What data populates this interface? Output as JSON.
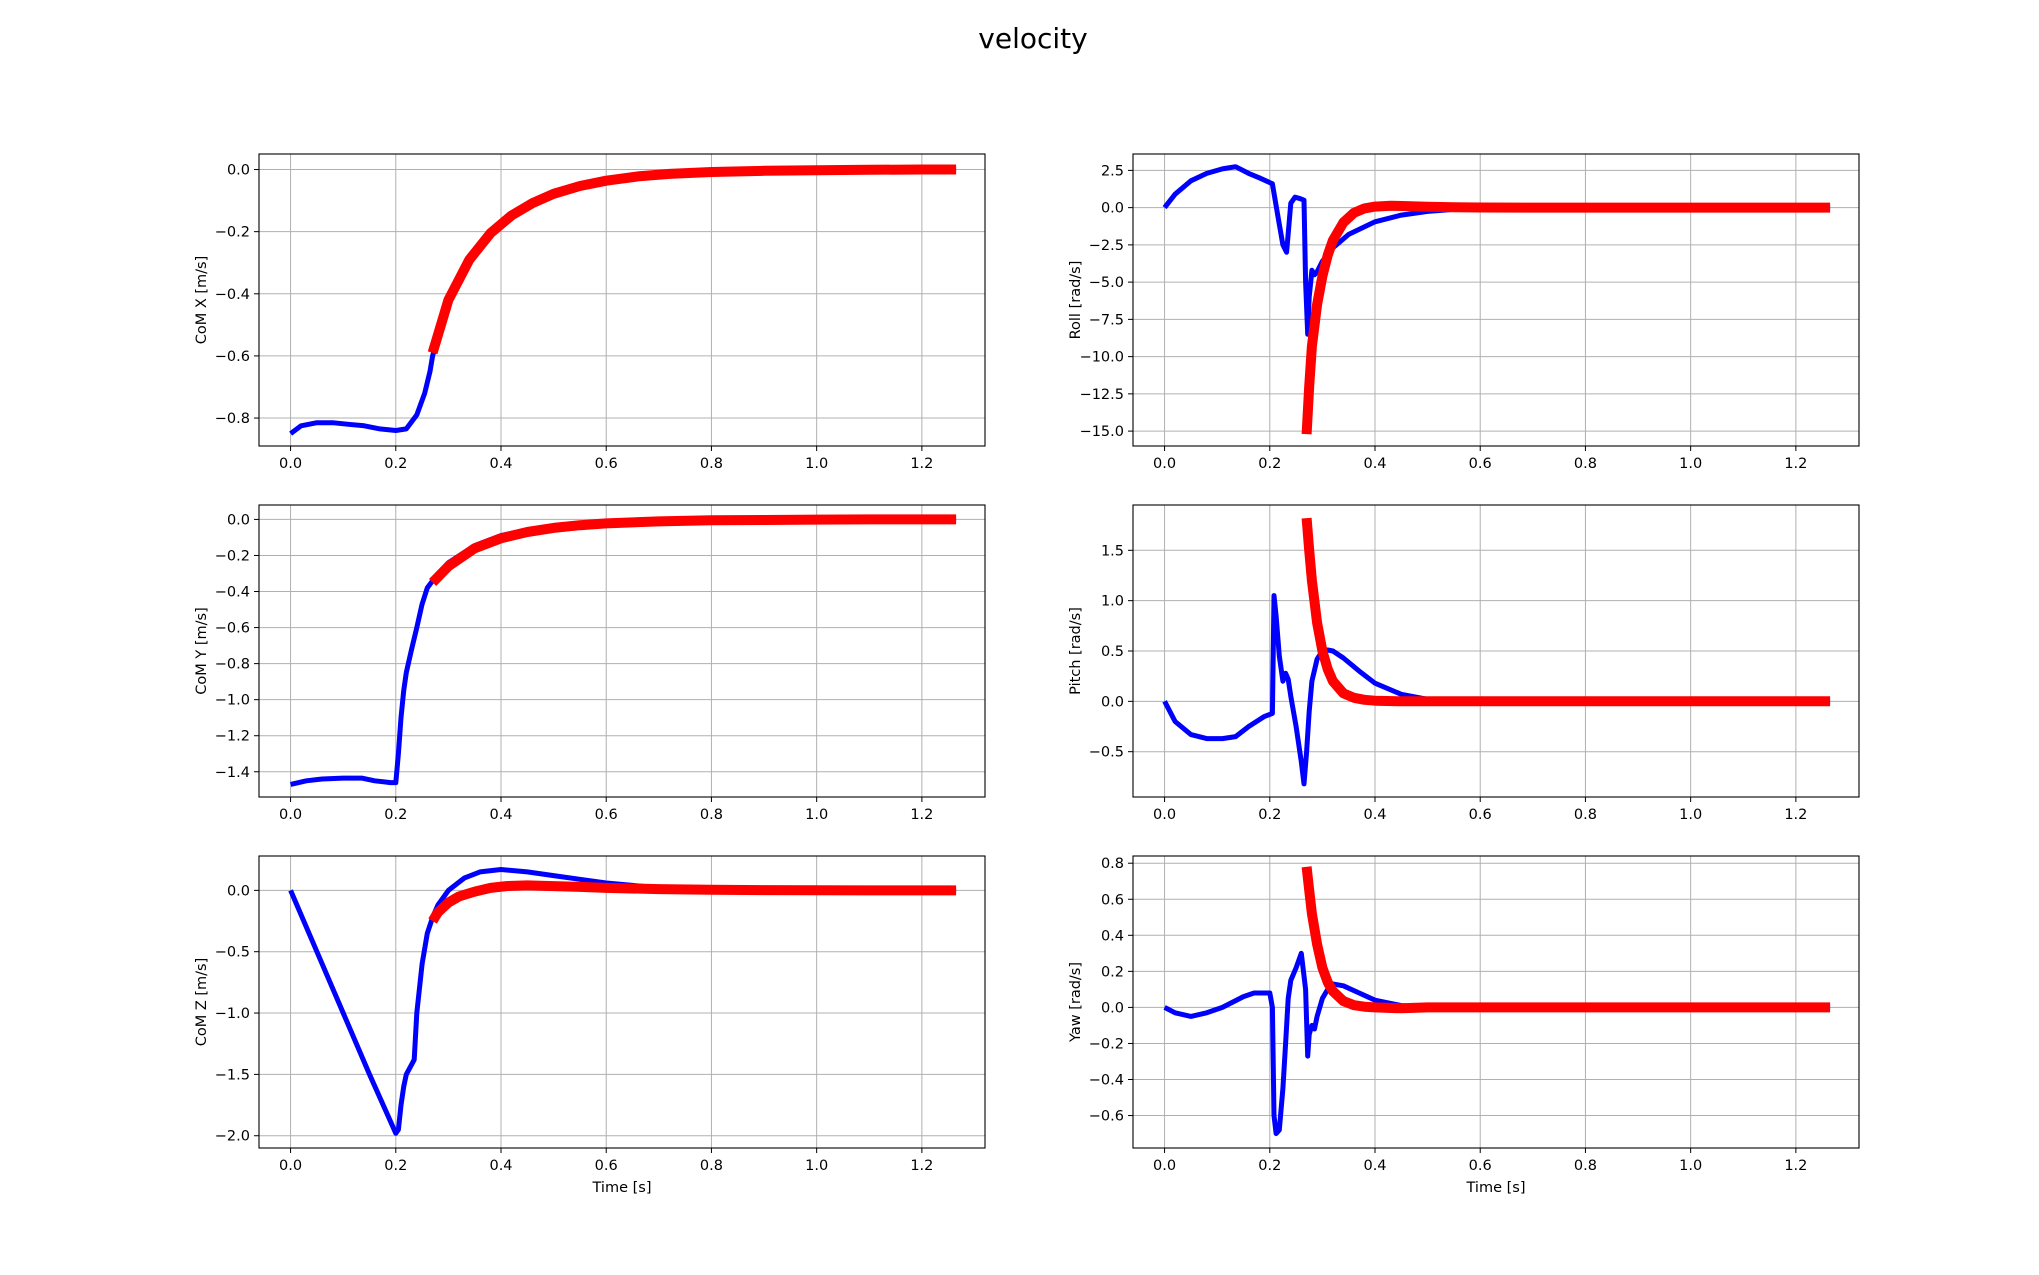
{
  "figure": {
    "title": "velocity",
    "colors": {
      "measured": "#0000ff",
      "reference": "#ff0000",
      "grid": "#b0b0b0"
    }
  },
  "chart_data": [
    {
      "type": "line",
      "ylabel": "CoM X [m/s]",
      "xlabel": "",
      "xlim": [
        -0.06,
        1.32
      ],
      "ylim": [
        -0.89,
        0.05
      ],
      "xticks": [
        0.0,
        0.2,
        0.4,
        0.6,
        0.8,
        1.0,
        1.2
      ],
      "xtick_labels": [
        "0.0",
        "0.2",
        "0.4",
        "0.6",
        "0.8",
        "1.0",
        "1.2"
      ],
      "yticks": [
        0.0,
        -0.2,
        -0.4,
        -0.6,
        -0.8
      ],
      "ytick_labels": [
        "0.0",
        "−0.2",
        "−0.4",
        "−0.6",
        "−0.8"
      ],
      "grid": true,
      "series": [
        {
          "color": "blue",
          "x": [
            0.0,
            0.02,
            0.05,
            0.08,
            0.11,
            0.14,
            0.17,
            0.2,
            0.22,
            0.24,
            0.255,
            0.265,
            0.27,
            0.3,
            0.34,
            0.38,
            0.42,
            0.46,
            0.5,
            0.55,
            0.6,
            0.66,
            0.72,
            0.8,
            0.9,
            1.0,
            1.1,
            1.2,
            1.265
          ],
          "y": [
            -0.85,
            -0.825,
            -0.815,
            -0.815,
            -0.82,
            -0.825,
            -0.835,
            -0.84,
            -0.835,
            -0.79,
            -0.72,
            -0.65,
            -0.6,
            -0.43,
            -0.3,
            -0.21,
            -0.155,
            -0.115,
            -0.085,
            -0.06,
            -0.042,
            -0.028,
            -0.019,
            -0.011,
            -0.006,
            -0.003,
            -0.002,
            -0.001,
            -0.001
          ]
        },
        {
          "color": "red",
          "x": [
            0.27,
            0.3,
            0.34,
            0.38,
            0.42,
            0.46,
            0.5,
            0.55,
            0.6,
            0.66,
            0.72,
            0.8,
            0.9,
            1.0,
            1.1,
            1.2,
            1.265
          ],
          "y": [
            -0.59,
            -0.42,
            -0.29,
            -0.205,
            -0.148,
            -0.108,
            -0.078,
            -0.053,
            -0.036,
            -0.022,
            -0.014,
            -0.008,
            -0.004,
            -0.002,
            -0.001,
            0.0,
            0.0
          ]
        }
      ]
    },
    {
      "type": "line",
      "ylabel": "Roll [rad/s]",
      "xlabel": "",
      "xlim": [
        -0.06,
        1.32
      ],
      "ylim": [
        -16.0,
        3.6
      ],
      "xticks": [
        0.0,
        0.2,
        0.4,
        0.6,
        0.8,
        1.0,
        1.2
      ],
      "xtick_labels": [
        "0.0",
        "0.2",
        "0.4",
        "0.6",
        "0.8",
        "1.0",
        "1.2"
      ],
      "yticks": [
        2.5,
        0.0,
        -2.5,
        -5.0,
        -7.5,
        -10.0,
        -12.5,
        -15.0
      ],
      "ytick_labels": [
        "2.5",
        "0.0",
        "−2.5",
        "−5.0",
        "−7.5",
        "−10.0",
        "−12.5",
        "−15.0"
      ],
      "grid": true,
      "series": [
        {
          "color": "blue",
          "x": [
            0.0,
            0.02,
            0.05,
            0.08,
            0.11,
            0.135,
            0.16,
            0.18,
            0.205,
            0.215,
            0.225,
            0.232,
            0.24,
            0.248,
            0.258,
            0.265,
            0.268,
            0.272,
            0.275,
            0.28,
            0.285,
            0.29,
            0.3,
            0.32,
            0.35,
            0.4,
            0.45,
            0.5,
            0.55,
            0.6,
            0.7,
            0.8,
            1.0,
            1.265
          ],
          "y": [
            0.0,
            0.9,
            1.8,
            2.3,
            2.6,
            2.75,
            2.3,
            2.0,
            1.6,
            -0.5,
            -2.5,
            -3.0,
            0.3,
            0.7,
            0.6,
            0.5,
            -5.0,
            -8.5,
            -6.0,
            -4.2,
            -4.5,
            -4.3,
            -3.6,
            -2.7,
            -1.8,
            -0.95,
            -0.5,
            -0.25,
            -0.12,
            -0.06,
            -0.02,
            -0.01,
            0.0,
            0.0
          ]
        },
        {
          "color": "red",
          "x": [
            0.27,
            0.275,
            0.28,
            0.29,
            0.3,
            0.31,
            0.32,
            0.34,
            0.36,
            0.38,
            0.4,
            0.43,
            0.46,
            0.5,
            0.55,
            0.6,
            0.7,
            0.8,
            1.0,
            1.265
          ],
          "y": [
            -15.2,
            -12.0,
            -9.3,
            -6.5,
            -4.6,
            -3.2,
            -2.2,
            -1.0,
            -0.35,
            -0.05,
            0.07,
            0.12,
            0.1,
            0.06,
            0.03,
            0.01,
            0.0,
            0.0,
            0.0,
            0.0
          ]
        }
      ]
    },
    {
      "type": "line",
      "ylabel": "CoM Y [m/s]",
      "xlabel": "",
      "xlim": [
        -0.06,
        1.32
      ],
      "ylim": [
        -1.54,
        0.08
      ],
      "xticks": [
        0.0,
        0.2,
        0.4,
        0.6,
        0.8,
        1.0,
        1.2
      ],
      "xtick_labels": [
        "0.0",
        "0.2",
        "0.4",
        "0.6",
        "0.8",
        "1.0",
        "1.2"
      ],
      "yticks": [
        0.0,
        -0.2,
        -0.4,
        -0.6,
        -0.8,
        -1.0,
        -1.2,
        -1.4
      ],
      "ytick_labels": [
        "0.0",
        "−0.2",
        "−0.4",
        "−0.6",
        "−0.8",
        "−1.0",
        "−1.2",
        "−1.4"
      ],
      "grid": true,
      "series": [
        {
          "color": "blue",
          "x": [
            0.0,
            0.03,
            0.06,
            0.1,
            0.135,
            0.16,
            0.19,
            0.2,
            0.205,
            0.21,
            0.215,
            0.22,
            0.23,
            0.24,
            0.25,
            0.26,
            0.27,
            0.3,
            0.35,
            0.4,
            0.45,
            0.5,
            0.6,
            0.7,
            0.8,
            1.0,
            1.265
          ],
          "y": [
            -1.47,
            -1.45,
            -1.44,
            -1.435,
            -1.435,
            -1.45,
            -1.46,
            -1.46,
            -1.3,
            -1.1,
            -0.95,
            -0.85,
            -0.72,
            -0.6,
            -0.47,
            -0.38,
            -0.34,
            -0.24,
            -0.145,
            -0.09,
            -0.058,
            -0.038,
            -0.018,
            -0.008,
            -0.004,
            -0.001,
            0.0
          ]
        },
        {
          "color": "red",
          "x": [
            0.27,
            0.3,
            0.35,
            0.4,
            0.45,
            0.5,
            0.55,
            0.6,
            0.7,
            0.8,
            0.9,
            1.0,
            1.1,
            1.2,
            1.265
          ],
          "y": [
            -0.35,
            -0.26,
            -0.16,
            -0.105,
            -0.07,
            -0.047,
            -0.032,
            -0.022,
            -0.011,
            -0.005,
            -0.003,
            -0.001,
            0.0,
            0.0,
            0.0
          ]
        }
      ]
    },
    {
      "type": "line",
      "ylabel": "Pitch [rad/s]",
      "xlabel": "",
      "xlim": [
        -0.06,
        1.32
      ],
      "ylim": [
        -0.95,
        1.95
      ],
      "xticks": [
        0.0,
        0.2,
        0.4,
        0.6,
        0.8,
        1.0,
        1.2
      ],
      "xtick_labels": [
        "0.0",
        "0.2",
        "0.4",
        "0.6",
        "0.8",
        "1.0",
        "1.2"
      ],
      "yticks": [
        1.5,
        1.0,
        0.5,
        0.0,
        -0.5
      ],
      "ytick_labels": [
        "1.5",
        "1.0",
        "0.5",
        "0.0",
        "−0.5"
      ],
      "grid": true,
      "series": [
        {
          "color": "blue",
          "x": [
            0.0,
            0.02,
            0.05,
            0.08,
            0.11,
            0.135,
            0.16,
            0.19,
            0.205,
            0.208,
            0.212,
            0.218,
            0.225,
            0.23,
            0.235,
            0.24,
            0.25,
            0.26,
            0.265,
            0.27,
            0.275,
            0.28,
            0.29,
            0.3,
            0.31,
            0.32,
            0.34,
            0.37,
            0.4,
            0.45,
            0.5,
            0.55,
            0.6,
            0.7,
            1.0,
            1.265
          ],
          "y": [
            0.0,
            -0.2,
            -0.33,
            -0.37,
            -0.37,
            -0.35,
            -0.25,
            -0.15,
            -0.12,
            1.05,
            0.85,
            0.45,
            0.2,
            0.28,
            0.22,
            0.05,
            -0.25,
            -0.6,
            -0.82,
            -0.5,
            -0.1,
            0.2,
            0.42,
            0.5,
            0.51,
            0.5,
            0.43,
            0.3,
            0.18,
            0.07,
            0.02,
            0.005,
            0.0,
            0.0,
            0.0,
            0.0
          ]
        },
        {
          "color": "red",
          "x": [
            0.27,
            0.275,
            0.28,
            0.29,
            0.3,
            0.31,
            0.32,
            0.34,
            0.36,
            0.38,
            0.4,
            0.45,
            0.5,
            0.6,
            0.8,
            1.0,
            1.265
          ],
          "y": [
            1.82,
            1.5,
            1.2,
            0.78,
            0.5,
            0.32,
            0.2,
            0.08,
            0.035,
            0.015,
            0.006,
            0.0,
            0.0,
            0.0,
            0.0,
            0.0,
            0.0
          ]
        }
      ]
    },
    {
      "type": "line",
      "ylabel": "CoM Z [m/s]",
      "xlabel": "Time [s]",
      "xlim": [
        -0.06,
        1.32
      ],
      "ylim": [
        -2.1,
        0.28
      ],
      "xticks": [
        0.0,
        0.2,
        0.4,
        0.6,
        0.8,
        1.0,
        1.2
      ],
      "xtick_labels": [
        "0.0",
        "0.2",
        "0.4",
        "0.6",
        "0.8",
        "1.0",
        "1.2"
      ],
      "yticks": [
        0.0,
        -0.5,
        -1.0,
        -1.5,
        -2.0
      ],
      "ytick_labels": [
        "0.0",
        "−0.5",
        "−1.0",
        "−1.5",
        "−2.0"
      ],
      "grid": true,
      "series": [
        {
          "color": "blue",
          "x": [
            0.0,
            0.05,
            0.1,
            0.15,
            0.2,
            0.205,
            0.21,
            0.215,
            0.22,
            0.23,
            0.235,
            0.24,
            0.25,
            0.26,
            0.27,
            0.28,
            0.3,
            0.33,
            0.36,
            0.4,
            0.45,
            0.5,
            0.55,
            0.6,
            0.65,
            0.7,
            0.8,
            0.9,
            1.0,
            1.265
          ],
          "y": [
            0.0,
            -0.5,
            -1.0,
            -1.5,
            -1.98,
            -1.95,
            -1.75,
            -1.6,
            -1.5,
            -1.42,
            -1.38,
            -1.0,
            -0.6,
            -0.35,
            -0.22,
            -0.12,
            0.0,
            0.1,
            0.15,
            0.17,
            0.15,
            0.12,
            0.09,
            0.06,
            0.04,
            0.02,
            0.01,
            0.003,
            0.0,
            0.0
          ]
        },
        {
          "color": "red",
          "x": [
            0.27,
            0.28,
            0.3,
            0.32,
            0.35,
            0.38,
            0.41,
            0.45,
            0.5,
            0.55,
            0.6,
            0.7,
            0.8,
            0.9,
            1.0,
            1.1,
            1.2,
            1.265
          ],
          "y": [
            -0.25,
            -0.18,
            -0.1,
            -0.05,
            -0.01,
            0.02,
            0.035,
            0.04,
            0.035,
            0.028,
            0.02,
            0.01,
            0.005,
            0.002,
            0.001,
            0.0,
            0.0,
            0.0
          ]
        }
      ]
    },
    {
      "type": "line",
      "ylabel": "Yaw [rad/s]",
      "xlabel": "Time [s]",
      "xlim": [
        -0.06,
        1.32
      ],
      "ylim": [
        -0.78,
        0.84
      ],
      "xticks": [
        0.0,
        0.2,
        0.4,
        0.6,
        0.8,
        1.0,
        1.2
      ],
      "xtick_labels": [
        "0.0",
        "0.2",
        "0.4",
        "0.6",
        "0.8",
        "1.0",
        "1.2"
      ],
      "yticks": [
        0.8,
        0.6,
        0.4,
        0.2,
        0.0,
        -0.2,
        -0.4,
        -0.6
      ],
      "ytick_labels": [
        "0.8",
        "0.6",
        "0.4",
        "0.2",
        "0.0",
        "−0.2",
        "−0.4",
        "−0.6"
      ],
      "grid": true,
      "series": [
        {
          "color": "blue",
          "x": [
            0.0,
            0.02,
            0.05,
            0.08,
            0.11,
            0.15,
            0.17,
            0.2,
            0.205,
            0.208,
            0.212,
            0.218,
            0.225,
            0.23,
            0.235,
            0.24,
            0.25,
            0.26,
            0.268,
            0.272,
            0.275,
            0.28,
            0.285,
            0.29,
            0.3,
            0.31,
            0.32,
            0.34,
            0.37,
            0.4,
            0.45,
            0.5,
            0.6,
            1.0,
            1.265
          ],
          "y": [
            0.0,
            -0.03,
            -0.05,
            -0.03,
            0.0,
            0.06,
            0.08,
            0.08,
            0.0,
            -0.6,
            -0.7,
            -0.68,
            -0.45,
            -0.2,
            0.05,
            0.15,
            0.22,
            0.3,
            0.1,
            -0.27,
            -0.15,
            -0.1,
            -0.12,
            -0.05,
            0.05,
            0.1,
            0.13,
            0.12,
            0.08,
            0.04,
            0.01,
            0.002,
            0.0,
            0.0,
            0.0
          ]
        },
        {
          "color": "red",
          "x": [
            0.27,
            0.275,
            0.28,
            0.29,
            0.3,
            0.31,
            0.32,
            0.34,
            0.36,
            0.38,
            0.4,
            0.45,
            0.5,
            0.6,
            0.8,
            1.0,
            1.265
          ],
          "y": [
            0.78,
            0.65,
            0.52,
            0.35,
            0.22,
            0.14,
            0.09,
            0.035,
            0.012,
            0.004,
            0.0,
            -0.005,
            0.0,
            0.0,
            0.0,
            0.0,
            0.0
          ]
        }
      ]
    }
  ]
}
